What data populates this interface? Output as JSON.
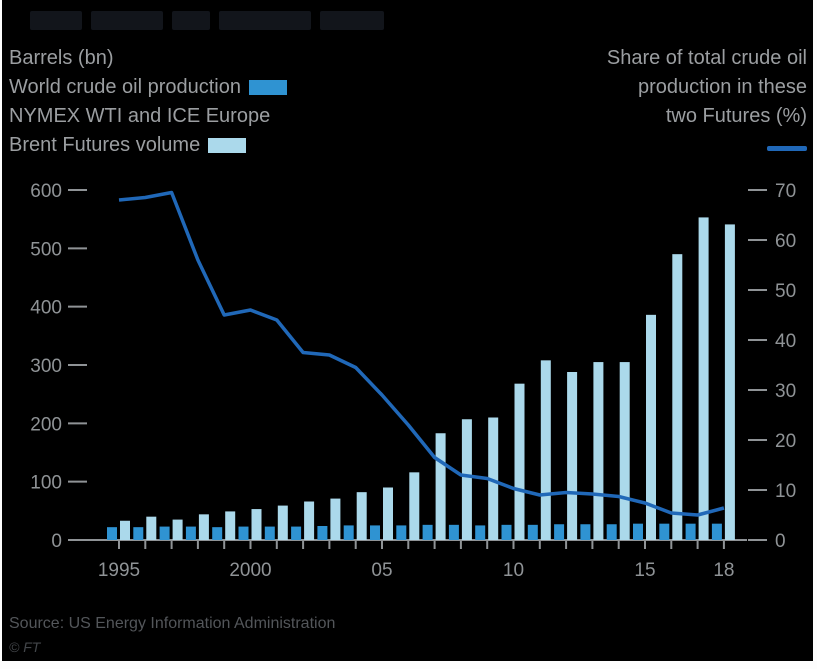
{
  "frame": {
    "background": "#000000",
    "border_color": "#fdfdfd"
  },
  "legend_left": {
    "axis_label": "Barrels (bn)",
    "production_label": "World crude oil production",
    "futures_label_line1": "NYMEX WTI and ICE Europe",
    "futures_label_line2": "Brent Futures volume",
    "production_color": "#2f93d2",
    "futures_color": "#abd9eb"
  },
  "legend_right": {
    "line1": "Share of total crude oil",
    "line2": "production in these",
    "line3": "two Futures (%)",
    "share_line_color": "#2068b8"
  },
  "footer": {
    "source": "Source: US Energy Information Administration",
    "credit": "© FT"
  },
  "chart_data": {
    "type": "bar+line",
    "title": "",
    "x": [
      1995,
      1996,
      1997,
      1998,
      1999,
      2000,
      2001,
      2002,
      2003,
      2004,
      2005,
      2006,
      2007,
      2008,
      2009,
      2010,
      2011,
      2012,
      2013,
      2014,
      2015,
      2016,
      2017,
      2018
    ],
    "series": [
      {
        "name": "World crude oil production (bn barrels)",
        "type": "bar",
        "axis": "left",
        "color": "#2f93d2",
        "values": [
          22,
          22,
          23,
          23,
          22,
          23,
          23,
          23,
          24,
          25,
          25,
          25,
          26,
          26,
          25,
          26,
          26,
          27,
          27,
          27,
          28,
          28,
          28,
          28
        ]
      },
      {
        "name": "NYMEX WTI and ICE Europe Brent Futures volume (bn barrels)",
        "type": "bar",
        "axis": "left",
        "color": "#abd9eb",
        "values": [
          33,
          40,
          35,
          44,
          49,
          53,
          59,
          66,
          71,
          82,
          90,
          116,
          183,
          207,
          210,
          268,
          308,
          288,
          305,
          305,
          386,
          490,
          553,
          541
        ]
      },
      {
        "name": "Share of total crude oil production in these two Futures (%)",
        "type": "line",
        "axis": "right",
        "color": "#2068b8",
        "values": [
          68,
          68.5,
          69.5,
          56,
          45,
          46,
          44,
          37.5,
          37,
          34.5,
          29,
          23,
          16.5,
          13,
          12.3,
          10.3,
          9,
          9.5,
          9.2,
          8.7,
          7.4,
          5.4,
          5,
          6.4
        ]
      }
    ],
    "left_axis": {
      "label": "Barrels (bn)",
      "min": 0,
      "max": 600,
      "ticks": [
        0,
        100,
        200,
        300,
        400,
        500,
        600
      ]
    },
    "right_axis": {
      "label": "Share of total crude oil production in these two Futures (%)",
      "min": 0,
      "max": 70,
      "ticks": [
        0,
        10,
        20,
        30,
        40,
        50,
        60,
        70
      ]
    },
    "x_axis": {
      "tick_every_year": true,
      "labels": {
        "1995": "1995",
        "2000": "2000",
        "2005": "05",
        "2010": "10",
        "2015": "15",
        "2018": "18"
      }
    },
    "grid": false,
    "legend_position": "top",
    "axis_text_color": "#8f9396"
  }
}
